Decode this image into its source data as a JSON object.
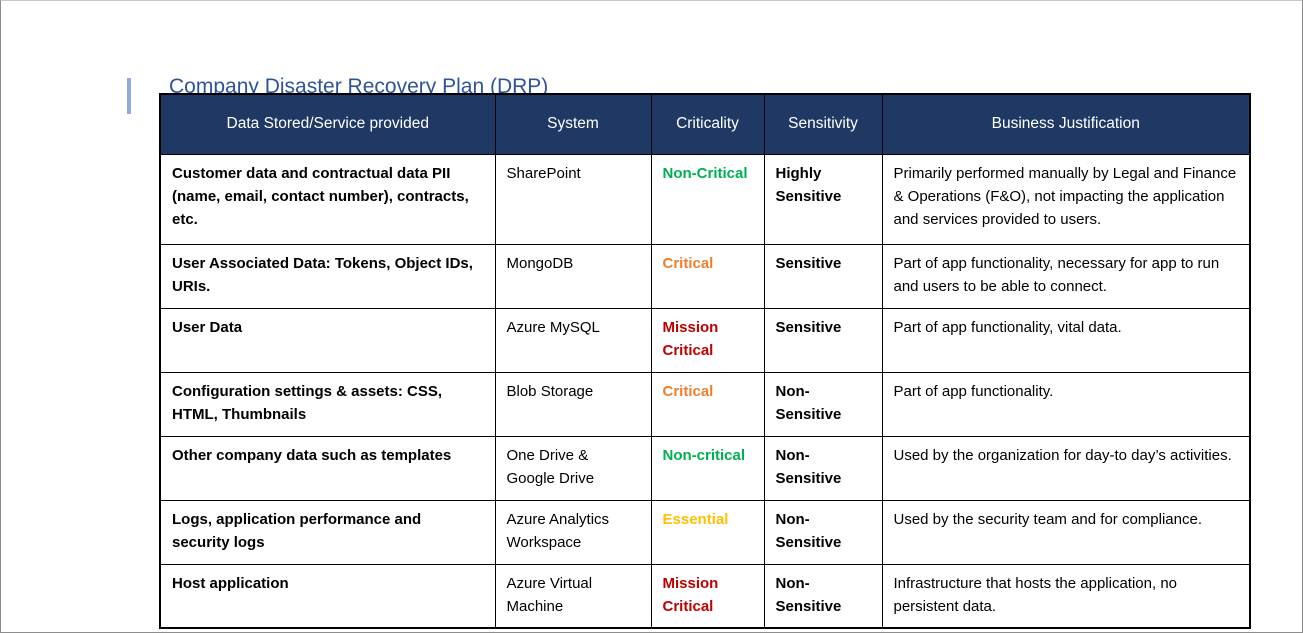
{
  "document": {
    "heading": "Company Disaster Recovery Plan (DRP)"
  },
  "colors": {
    "header-bg": "#1F3864",
    "header-text": "#FFFFFF",
    "heading-blue": "#2F5496",
    "accent-bar": "#8FAADC",
    "green": "#00B050",
    "orange": "#ED7D31",
    "red": "#C00000",
    "gold": "#FFC000",
    "border": "#000000",
    "frame": "#8C8C8C"
  },
  "table": {
    "columns": [
      "Data Stored/Service provided",
      "System",
      "Criticality",
      "Sensitivity",
      "Business Justification"
    ],
    "rows": [
      {
        "service": "Customer data and contractual data PII (name, email, contact number), contracts, etc.",
        "system": "SharePoint",
        "criticality": "Non-Critical",
        "criticality_color": "#00B050",
        "sensitivity": "Highly Sensitive",
        "justification": "Primarily performed manually by Legal and Finance & Operations (F&O), not impacting the application and services provided to users."
      },
      {
        "service": "User Associated Data: Tokens, Object IDs, URIs.",
        "system": "MongoDB",
        "criticality": "Critical",
        "criticality_color": "#ED7D31",
        "sensitivity": "Sensitive",
        "justification": "Part of app functionality, necessary for app to run and users to be able to connect."
      },
      {
        "service": "User Data",
        "system": "Azure MySQL",
        "criticality": "Mission Critical",
        "criticality_color": "#C00000",
        "sensitivity": "Sensitive",
        "justification": "Part of app functionality, vital data."
      },
      {
        "service": "Configuration settings & assets: CSS, HTML, Thumbnails",
        "system": "Blob Storage",
        "criticality": "Critical",
        "criticality_color": "#ED7D31",
        "sensitivity": "Non-Sensitive",
        "justification": "Part of app functionality."
      },
      {
        "service": "Other company data such as templates",
        "system": "One Drive & Google Drive",
        "criticality": "Non-critical",
        "criticality_color": "#00B050",
        "sensitivity": "Non-Sensitive",
        "justification": "Used by the organization for day-to day’s activities."
      },
      {
        "service": "Logs, application performance and security logs",
        "system": "Azure Analytics Workspace",
        "criticality": "Essential",
        "criticality_color": "#FFC000",
        "sensitivity": "Non-Sensitive",
        "justification": "Used by the security team and for compliance."
      },
      {
        "service": "Host application",
        "system": "Azure Virtual Machine",
        "criticality": "Mission Critical",
        "criticality_color": "#C00000",
        "sensitivity": "Non-Sensitive",
        "justification": "Infrastructure that hosts the application, no persistent data."
      }
    ]
  }
}
